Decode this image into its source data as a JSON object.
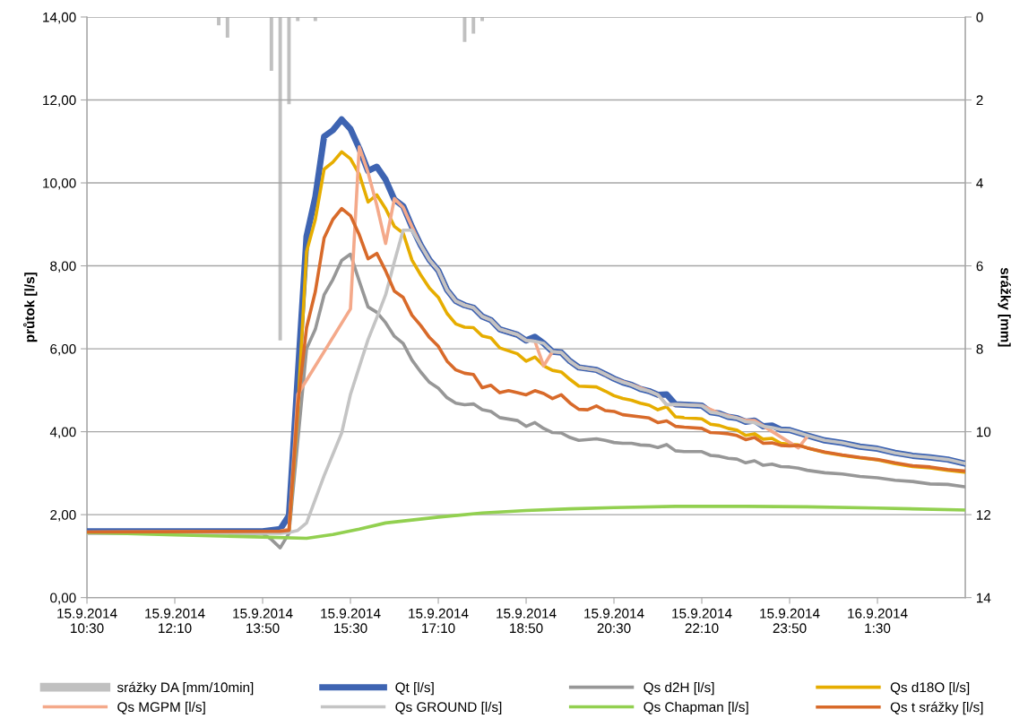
{
  "chart_data": {
    "type": "line",
    "ylabel": "průtok [l/s]",
    "y2label": "srážky [mm]",
    "xlim": [
      "2014-09-15T10:30",
      "2014-09-16T03:10"
    ],
    "xticks": [
      {
        "value": "2014-09-15T10:30",
        "label": "15.9.2014\n10:30"
      },
      {
        "value": "2014-09-15T12:10",
        "label": "15.9.2014\n12:10"
      },
      {
        "value": "2014-09-15T13:50",
        "label": "15.9.2014\n13:50"
      },
      {
        "value": "2014-09-15T15:30",
        "label": "15.9.2014\n15:30"
      },
      {
        "value": "2014-09-15T17:10",
        "label": "15.9.2014\n17:10"
      },
      {
        "value": "2014-09-15T18:50",
        "label": "15.9.2014\n18:50"
      },
      {
        "value": "2014-09-15T20:30",
        "label": "15.9.2014\n20:30"
      },
      {
        "value": "2014-09-15T22:10",
        "label": "15.9.2014\n22:10"
      },
      {
        "value": "2014-09-15T23:50",
        "label": "15.9.2014\n23:50"
      },
      {
        "value": "2014-09-16T01:30",
        "label": "16.9.2014\n1:30"
      }
    ],
    "ylim": [
      0,
      14
    ],
    "yticks": [
      {
        "value": 0,
        "label": "0,00"
      },
      {
        "value": 2,
        "label": "2,00"
      },
      {
        "value": 4,
        "label": "4,00"
      },
      {
        "value": 6,
        "label": "6,00"
      },
      {
        "value": 8,
        "label": "8,00"
      },
      {
        "value": 10,
        "label": "10,00"
      },
      {
        "value": 12,
        "label": "12,00"
      },
      {
        "value": 14,
        "label": "14,00"
      }
    ],
    "y2lim": [
      14,
      0
    ],
    "y2ticks": [
      0,
      2,
      4,
      6,
      8,
      10,
      12,
      14
    ],
    "grid": "y",
    "legend": "bottom",
    "marker": "none",
    "line_style": "solid",
    "series": [
      {
        "name": "srážky DA [mm/10min]",
        "type": "bar",
        "axis": "y2",
        "color": "#c0c0c0",
        "x": [
          "2014-09-15T13:00",
          "2014-09-15T13:10",
          "2014-09-15T14:00",
          "2014-09-15T14:10",
          "2014-09-15T14:20",
          "2014-09-15T14:30",
          "2014-09-15T14:50",
          "2014-09-15T17:40",
          "2014-09-15T17:50",
          "2014-09-15T18:00"
        ],
        "values": [
          0.2,
          0.5,
          1.3,
          7.8,
          2.1,
          0.1,
          0.1,
          0.6,
          0.4,
          0.1
        ]
      },
      {
        "name": "Qt [l/s]",
        "color": "#3e64b2",
        "x": [
          "2014-09-15T10:30",
          "2014-09-15T13:50",
          "2014-09-15T14:10",
          "2014-09-15T14:20",
          "2014-09-15T14:40",
          "2014-09-15T14:50",
          "2014-09-15T15:00",
          "2014-09-15T15:10",
          "2014-09-15T15:20",
          "2014-09-15T15:30",
          "2014-09-15T15:40",
          "2014-09-15T15:50",
          "2014-09-15T16:00",
          "2014-09-15T16:10",
          "2014-09-15T16:20",
          "2014-09-15T16:30",
          "2014-09-15T16:40",
          "2014-09-15T16:50",
          "2014-09-15T17:00",
          "2014-09-15T17:10",
          "2014-09-15T17:20",
          "2014-09-15T17:30",
          "2014-09-15T17:40",
          "2014-09-15T17:50",
          "2014-09-15T18:00",
          "2014-09-15T18:10",
          "2014-09-15T18:20",
          "2014-09-15T18:40",
          "2014-09-15T18:50",
          "2014-09-15T19:00",
          "2014-09-15T19:10",
          "2014-09-15T19:20",
          "2014-09-15T19:30",
          "2014-09-15T19:40",
          "2014-09-15T19:50",
          "2014-09-15T20:10",
          "2014-09-15T20:20",
          "2014-09-15T20:30",
          "2014-09-15T20:40",
          "2014-09-15T20:50",
          "2014-09-15T21:00",
          "2014-09-15T21:10",
          "2014-09-15T21:20",
          "2014-09-15T21:30",
          "2014-09-15T21:40",
          "2014-09-15T21:50",
          "2014-09-15T22:10",
          "2014-09-15T22:20",
          "2014-09-15T22:30",
          "2014-09-15T22:40",
          "2014-09-15T22:50",
          "2014-09-15T23:00",
          "2014-09-15T23:10",
          "2014-09-15T23:20",
          "2014-09-15T23:30",
          "2014-09-15T23:40",
          "2014-09-15T23:50",
          "2014-09-16T00:10",
          "2014-09-16T00:30",
          "2014-09-16T00:50",
          "2014-09-16T01:10",
          "2014-09-16T01:30",
          "2014-09-16T01:50",
          "2014-09-16T02:10",
          "2014-09-16T02:30",
          "2014-09-16T02:50",
          "2014-09-16T03:10"
        ],
        "values": [
          1.6,
          1.6,
          1.65,
          1.98,
          8.71,
          9.66,
          11.12,
          11.27,
          11.53,
          11.3,
          10.83,
          10.29,
          10.39,
          10.08,
          9.6,
          9.44,
          8.94,
          8.5,
          8.14,
          7.89,
          7.42,
          7.15,
          7.05,
          6.99,
          6.78,
          6.69,
          6.47,
          6.34,
          6.2,
          6.29,
          6.13,
          5.93,
          5.91,
          5.7,
          5.55,
          5.49,
          5.39,
          5.28,
          5.19,
          5.13,
          5.03,
          4.98,
          4.89,
          4.9,
          4.66,
          4.65,
          4.63,
          4.47,
          4.44,
          4.36,
          4.33,
          4.24,
          4.27,
          4.13,
          4.15,
          4.05,
          4.04,
          3.91,
          3.79,
          3.73,
          3.64,
          3.59,
          3.49,
          3.42,
          3.38,
          3.33,
          3.23
        ]
      },
      {
        "name": "Qs d2H [l/s]",
        "color": "#979797",
        "x": [
          "2014-09-15T10:30",
          "2014-09-15T13:50",
          "2014-09-15T14:00",
          "2014-09-15T14:10",
          "2014-09-15T14:20",
          "2014-09-15T14:40",
          "2014-09-15T14:50",
          "2014-09-15T15:00",
          "2014-09-15T15:10",
          "2014-09-15T15:20",
          "2014-09-15T15:30",
          "2014-09-15T15:40",
          "2014-09-15T15:50",
          "2014-09-15T16:00",
          "2014-09-15T16:10",
          "2014-09-15T16:20",
          "2014-09-15T16:30",
          "2014-09-15T16:40",
          "2014-09-15T16:50",
          "2014-09-15T17:00",
          "2014-09-15T17:10",
          "2014-09-15T17:20",
          "2014-09-15T17:30",
          "2014-09-15T17:40",
          "2014-09-15T17:50",
          "2014-09-15T18:00",
          "2014-09-15T18:10",
          "2014-09-15T18:20",
          "2014-09-15T18:40",
          "2014-09-15T18:50",
          "2014-09-15T19:00",
          "2014-09-15T19:10",
          "2014-09-15T19:20",
          "2014-09-15T19:30",
          "2014-09-15T19:40",
          "2014-09-15T19:50",
          "2014-09-15T20:10",
          "2014-09-15T20:20",
          "2014-09-15T20:30",
          "2014-09-15T20:40",
          "2014-09-15T20:50",
          "2014-09-15T21:00",
          "2014-09-15T21:10",
          "2014-09-15T21:20",
          "2014-09-15T21:30",
          "2014-09-15T21:40",
          "2014-09-15T21:50",
          "2014-09-15T22:10",
          "2014-09-15T22:20",
          "2014-09-15T22:30",
          "2014-09-15T22:40",
          "2014-09-15T22:50",
          "2014-09-15T23:00",
          "2014-09-15T23:10",
          "2014-09-15T23:20",
          "2014-09-15T23:30",
          "2014-09-15T23:40",
          "2014-09-15T23:50",
          "2014-09-16T00:00",
          "2014-09-16T00:10",
          "2014-09-16T00:30",
          "2014-09-16T00:50",
          "2014-09-16T01:10",
          "2014-09-16T01:30",
          "2014-09-16T01:50",
          "2014-09-16T02:10",
          "2014-09-16T02:30",
          "2014-09-16T02:50",
          "2014-09-16T03:10"
        ],
        "values": [
          1.55,
          1.55,
          1.4,
          1.2,
          1.55,
          6.0,
          6.47,
          7.3,
          7.67,
          8.13,
          8.28,
          7.63,
          7.01,
          6.88,
          6.63,
          6.3,
          6.13,
          5.73,
          5.44,
          5.19,
          5.05,
          4.82,
          4.69,
          4.65,
          4.67,
          4.53,
          4.49,
          4.34,
          4.27,
          4.13,
          4.22,
          4.08,
          3.98,
          3.97,
          3.86,
          3.79,
          3.83,
          3.79,
          3.74,
          3.72,
          3.72,
          3.68,
          3.67,
          3.62,
          3.69,
          3.54,
          3.52,
          3.52,
          3.43,
          3.41,
          3.36,
          3.34,
          3.25,
          3.3,
          3.19,
          3.22,
          3.16,
          3.15,
          3.12,
          3.07,
          3.01,
          2.98,
          2.92,
          2.89,
          2.83,
          2.8,
          2.74,
          2.73,
          2.67
        ]
      },
      {
        "name": "Qs d18O [l/s]",
        "color": "#e6ad00",
        "x": [
          "2014-09-15T14:20",
          "2014-09-15T14:30",
          "2014-09-15T14:40",
          "2014-09-15T14:50",
          "2014-09-15T15:00",
          "2014-09-15T15:10",
          "2014-09-15T15:20",
          "2014-09-15T15:30",
          "2014-09-15T15:40",
          "2014-09-15T15:50",
          "2014-09-15T16:00",
          "2014-09-15T16:10",
          "2014-09-15T16:20",
          "2014-09-15T16:30",
          "2014-09-15T16:40",
          "2014-09-15T16:50",
          "2014-09-15T17:00",
          "2014-09-15T17:10",
          "2014-09-15T17:20",
          "2014-09-15T17:30",
          "2014-09-15T17:40",
          "2014-09-15T17:50",
          "2014-09-15T18:00",
          "2014-09-15T18:10",
          "2014-09-15T18:20",
          "2014-09-15T18:30",
          "2014-09-15T18:40",
          "2014-09-15T18:50",
          "2014-09-15T19:00",
          "2014-09-15T19:10",
          "2014-09-15T19:20",
          "2014-09-15T19:30",
          "2014-09-15T19:40",
          "2014-09-15T19:50",
          "2014-09-15T20:10",
          "2014-09-15T20:20",
          "2014-09-15T20:30",
          "2014-09-15T20:40",
          "2014-09-15T20:50",
          "2014-09-15T21:00",
          "2014-09-15T21:10",
          "2014-09-15T21:20",
          "2014-09-15T21:30",
          "2014-09-15T21:40",
          "2014-09-15T21:50",
          "2014-09-15T22:10",
          "2014-09-15T22:20",
          "2014-09-15T22:30",
          "2014-09-15T22:40",
          "2014-09-15T22:50",
          "2014-09-15T23:00",
          "2014-09-15T23:10",
          "2014-09-15T23:20",
          "2014-09-15T23:30",
          "2014-09-15T23:40",
          "2014-09-15T23:50",
          "2014-09-16T00:00",
          "2014-09-16T00:10",
          "2014-09-16T00:30",
          "2014-09-16T00:50",
          "2014-09-16T01:10",
          "2014-09-16T01:30",
          "2014-09-16T01:50",
          "2014-09-16T02:10",
          "2014-09-16T02:30",
          "2014-09-16T02:50",
          "2014-09-16T03:10"
        ],
        "values": [
          1.6,
          4.5,
          8.34,
          9.12,
          10.33,
          10.5,
          10.75,
          10.58,
          10.21,
          9.54,
          9.71,
          9.38,
          8.95,
          8.79,
          8.14,
          7.78,
          7.46,
          7.24,
          6.85,
          6.6,
          6.52,
          6.51,
          6.31,
          6.26,
          6.02,
          5.95,
          5.88,
          5.7,
          5.8,
          5.59,
          5.48,
          5.44,
          5.26,
          5.1,
          5.08,
          4.98,
          4.87,
          4.8,
          4.76,
          4.69,
          4.64,
          4.53,
          4.6,
          4.36,
          4.34,
          4.31,
          4.18,
          4.15,
          4.08,
          4.04,
          3.91,
          3.95,
          3.82,
          3.84,
          3.72,
          3.7,
          3.68,
          3.61,
          3.5,
          3.43,
          3.37,
          3.32,
          3.23,
          3.16,
          3.13,
          3.07,
          3.02
        ]
      },
      {
        "name": "Qs MGPM [l/s]",
        "color": "#f4a98a",
        "x": [
          "2014-09-15T10:30",
          "2014-09-15T14:10",
          "2014-09-15T14:20",
          "2014-09-15T14:30",
          "2014-09-15T15:30",
          "2014-09-15T15:40",
          "2014-09-15T15:50",
          "2014-09-15T16:00",
          "2014-09-15T16:10",
          "2014-09-15T16:20",
          "2014-09-15T16:30",
          "2014-09-15T16:40",
          "2014-09-15T16:50",
          "2014-09-15T17:00",
          "2014-09-15T17:10",
          "2014-09-15T17:20",
          "2014-09-15T17:30",
          "2014-09-15T17:40",
          "2014-09-15T17:50",
          "2014-09-15T18:00",
          "2014-09-15T18:10",
          "2014-09-15T18:20",
          "2014-09-15T18:40",
          "2014-09-15T18:50",
          "2014-09-15T19:00",
          "2014-09-15T19:10",
          "2014-09-15T19:20",
          "2014-09-15T19:30",
          "2014-09-15T19:40",
          "2014-09-15T19:50",
          "2014-09-15T20:10",
          "2014-09-15T20:30",
          "2014-09-15T20:50",
          "2014-09-15T21:10",
          "2014-09-15T21:20",
          "2014-09-15T21:30",
          "2014-09-15T21:50",
          "2014-09-15T22:10",
          "2014-09-15T22:30",
          "2014-09-15T22:50",
          "2014-09-15T23:00",
          "2014-09-15T23:10",
          "2014-09-16T00:00",
          "2014-09-16T00:10"
        ],
        "values": [
          1.58,
          1.6,
          1.65,
          4.9,
          6.96,
          10.87,
          10.25,
          9.46,
          8.54,
          9.62,
          9.41,
          8.94,
          8.5,
          8.14,
          7.89,
          7.42,
          7.15,
          7.05,
          6.99,
          6.78,
          6.69,
          6.47,
          6.34,
          6.2,
          6.18,
          5.59,
          5.93,
          5.91,
          5.7,
          5.55,
          5.49,
          5.28,
          5.13,
          4.98,
          4.89,
          4.65,
          4.65,
          4.63,
          4.44,
          4.33,
          4.27,
          4.27,
          3.61,
          3.88
        ]
      },
      {
        "name": "Qs GROUND [l/s]",
        "color": "#c4c4c4",
        "x": [
          "2014-09-15T10:30",
          "2014-09-15T14:10",
          "2014-09-15T14:20",
          "2014-09-15T14:30",
          "2014-09-15T14:40",
          "2014-09-15T15:00",
          "2014-09-15T15:20",
          "2014-09-15T15:30",
          "2014-09-15T15:50",
          "2014-09-15T16:00",
          "2014-09-15T16:10",
          "2014-09-15T16:20",
          "2014-09-15T16:30",
          "2014-09-15T16:40",
          "2014-09-15T16:50",
          "2014-09-15T17:00",
          "2014-09-15T17:10",
          "2014-09-15T17:20",
          "2014-09-15T17:30",
          "2014-09-15T17:40",
          "2014-09-15T17:50",
          "2014-09-15T18:00",
          "2014-09-15T18:10",
          "2014-09-15T18:20",
          "2014-09-15T18:40",
          "2014-09-15T18:50",
          "2014-09-15T19:00",
          "2014-09-15T19:10",
          "2014-09-15T19:20",
          "2014-09-15T19:30",
          "2014-09-15T19:40",
          "2014-09-15T19:50",
          "2014-09-15T20:10",
          "2014-09-15T20:20",
          "2014-09-15T20:30",
          "2014-09-15T20:40",
          "2014-09-15T20:50",
          "2014-09-15T21:00",
          "2014-09-15T21:10",
          "2014-09-15T21:20",
          "2014-09-15T21:30",
          "2014-09-15T21:40",
          "2014-09-15T21:50",
          "2014-09-15T22:10",
          "2014-09-15T22:20",
          "2014-09-15T22:30",
          "2014-09-15T22:40",
          "2014-09-15T22:50",
          "2014-09-15T23:00",
          "2014-09-15T23:10",
          "2014-09-15T23:20",
          "2014-09-15T23:30",
          "2014-09-15T23:40",
          "2014-09-15T23:50",
          "2014-09-16T00:10",
          "2014-09-16T00:30",
          "2014-09-16T00:50",
          "2014-09-16T01:10",
          "2014-09-16T01:30",
          "2014-09-16T01:50",
          "2014-09-16T02:10",
          "2014-09-16T02:30",
          "2014-09-16T02:50",
          "2014-09-16T03:10"
        ],
        "values": [
          1.55,
          1.55,
          1.57,
          1.62,
          1.8,
          2.94,
          3.97,
          4.9,
          6.22,
          6.75,
          7.3,
          8.1,
          8.86,
          8.86,
          8.5,
          8.14,
          7.89,
          7.42,
          7.15,
          7.05,
          6.99,
          6.78,
          6.69,
          6.47,
          6.34,
          6.2,
          6.18,
          6.13,
          5.93,
          5.91,
          5.7,
          5.55,
          5.49,
          5.39,
          5.28,
          5.19,
          5.13,
          5.03,
          4.98,
          4.89,
          4.65,
          4.66,
          4.65,
          4.63,
          4.47,
          4.44,
          4.36,
          4.33,
          4.24,
          4.22,
          4.13,
          4.1,
          4.05,
          4.04,
          3.91,
          3.79,
          3.73,
          3.64,
          3.59,
          3.49,
          3.42,
          3.38,
          3.33,
          3.23
        ]
      },
      {
        "name": "Qs Chapman [l/s]",
        "color": "#92d050",
        "x": [
          "2014-09-15T10:30",
          "2014-09-15T12:10",
          "2014-09-15T13:50",
          "2014-09-15T14:40",
          "2014-09-15T15:10",
          "2014-09-15T15:40",
          "2014-09-15T16:10",
          "2014-09-15T17:10",
          "2014-09-15T18:00",
          "2014-09-15T18:50",
          "2014-09-15T19:40",
          "2014-09-15T20:30",
          "2014-09-15T21:40",
          "2014-09-15T23:00",
          "2014-09-16T00:10",
          "2014-09-16T01:30",
          "2014-09-16T03:10"
        ],
        "values": [
          1.57,
          1.51,
          1.46,
          1.43,
          1.52,
          1.65,
          1.8,
          1.94,
          2.04,
          2.1,
          2.14,
          2.17,
          2.2,
          2.2,
          2.19,
          2.16,
          2.11
        ]
      },
      {
        "name": "Qs t srážky [l/s]",
        "color": "#d86a2a",
        "x": [
          "2014-09-15T10:30",
          "2014-09-15T14:10",
          "2014-09-15T14:20",
          "2014-09-15T14:30",
          "2014-09-15T14:40",
          "2014-09-15T14:50",
          "2014-09-15T15:00",
          "2014-09-15T15:10",
          "2014-09-15T15:20",
          "2014-09-15T15:30",
          "2014-09-15T15:40",
          "2014-09-15T15:50",
          "2014-09-15T16:00",
          "2014-09-15T16:10",
          "2014-09-15T16:20",
          "2014-09-15T16:30",
          "2014-09-15T16:40",
          "2014-09-15T16:50",
          "2014-09-15T17:00",
          "2014-09-15T17:10",
          "2014-09-15T17:20",
          "2014-09-15T17:30",
          "2014-09-15T17:40",
          "2014-09-15T17:50",
          "2014-09-15T18:00",
          "2014-09-15T18:10",
          "2014-09-15T18:20",
          "2014-09-15T18:30",
          "2014-09-15T18:40",
          "2014-09-15T18:50",
          "2014-09-15T19:00",
          "2014-09-15T19:10",
          "2014-09-15T19:20",
          "2014-09-15T19:30",
          "2014-09-15T19:40",
          "2014-09-15T19:50",
          "2014-09-15T20:00",
          "2014-09-15T20:10",
          "2014-09-15T20:20",
          "2014-09-15T20:30",
          "2014-09-15T20:40",
          "2014-09-15T21:00",
          "2014-09-15T21:10",
          "2014-09-15T21:20",
          "2014-09-15T21:30",
          "2014-09-15T21:40",
          "2014-09-15T21:50",
          "2014-09-15T22:10",
          "2014-09-15T22:20",
          "2014-09-15T22:30",
          "2014-09-15T22:40",
          "2014-09-15T22:50",
          "2014-09-15T23:00",
          "2014-09-15T23:10",
          "2014-09-15T23:20",
          "2014-09-15T23:30",
          "2014-09-15T23:40",
          "2014-09-15T23:50",
          "2014-09-16T00:00",
          "2014-09-16T00:10",
          "2014-09-16T00:30",
          "2014-09-16T00:50",
          "2014-09-16T01:10",
          "2014-09-16T01:30",
          "2014-09-16T01:50",
          "2014-09-16T02:10",
          "2014-09-16T02:30",
          "2014-09-16T02:50",
          "2014-09-16T03:10"
        ],
        "values": [
          1.58,
          1.6,
          1.62,
          4.64,
          6.51,
          7.38,
          8.67,
          9.12,
          9.38,
          9.21,
          8.75,
          8.17,
          8.3,
          7.88,
          7.39,
          7.24,
          6.81,
          6.56,
          6.27,
          6.06,
          5.7,
          5.49,
          5.41,
          5.38,
          5.06,
          5.12,
          4.94,
          4.99,
          4.94,
          4.89,
          4.99,
          4.92,
          4.8,
          4.89,
          4.69,
          4.54,
          4.53,
          4.62,
          4.51,
          4.49,
          4.41,
          4.36,
          4.33,
          4.22,
          4.26,
          4.13,
          4.11,
          4.08,
          3.98,
          3.97,
          3.95,
          3.91,
          3.81,
          3.86,
          3.72,
          3.73,
          3.67,
          3.66,
          3.67,
          3.61,
          3.51,
          3.44,
          3.38,
          3.33,
          3.25,
          3.18,
          3.15,
          3.09,
          3.05
        ]
      }
    ]
  }
}
